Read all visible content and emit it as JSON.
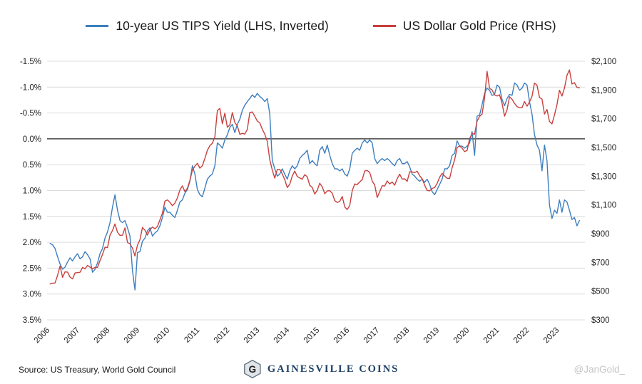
{
  "footer": {
    "source": "Source: US Treasury, World Gold Council",
    "brand": "Gainesville Coins",
    "watermark": "@JanGold_"
  },
  "colors": {
    "tips_line": "#3d7ebf",
    "gold_line": "#c8403d",
    "grid": "#dcdcdc",
    "zero_line": "#222222",
    "brand_navy": "#1e3f63"
  },
  "chart_data": {
    "type": "line",
    "x_unit": "decimal year (monthly points, Jan 2006 - Sep 2023)",
    "x_start": 2006.0,
    "x_step": 0.083333,
    "x_range": [
      2005.9,
      2023.85
    ],
    "x_ticks": [
      2006,
      2007,
      2008,
      2009,
      2010,
      2011,
      2012,
      2013,
      2014,
      2015,
      2016,
      2017,
      2018,
      2019,
      2020,
      2021,
      2022,
      2023
    ],
    "zero_line": 0,
    "grid": true,
    "legend_position": "top",
    "left_axis": {
      "min": -1.5,
      "max": 3.5,
      "inverted": true,
      "ticks": [
        {
          "v": -1.5,
          "label": "-1.5%"
        },
        {
          "v": -1.0,
          "label": "-1.0%"
        },
        {
          "v": -0.5,
          "label": "-0.5%"
        },
        {
          "v": 0.0,
          "label": "0.0%"
        },
        {
          "v": 0.5,
          "label": "0.5%"
        },
        {
          "v": 1.0,
          "label": "1.0%"
        },
        {
          "v": 1.5,
          "label": "1.5%"
        },
        {
          "v": 2.0,
          "label": "2.0%"
        },
        {
          "v": 2.5,
          "label": "2.5%"
        },
        {
          "v": 3.0,
          "label": "3.0%"
        },
        {
          "v": 3.5,
          "label": "3.5%"
        }
      ]
    },
    "right_axis": {
      "min": 300,
      "max": 2100,
      "ticks": [
        {
          "v": 2100,
          "label": "$2,100"
        },
        {
          "v": 1900,
          "label": "$1,900"
        },
        {
          "v": 1700,
          "label": "$1,700"
        },
        {
          "v": 1500,
          "label": "$1,500"
        },
        {
          "v": 1300,
          "label": "$1,300"
        },
        {
          "v": 1100,
          "label": "$1,100"
        },
        {
          "v": 900,
          "label": "$900"
        },
        {
          "v": 700,
          "label": "$700"
        },
        {
          "v": 500,
          "label": "$500"
        },
        {
          "v": 300,
          "label": "$300"
        }
      ]
    },
    "series": [
      {
        "name": "10-year US TIPS Yield (LHS, Inverted)",
        "axis": "left",
        "color": "#3d7ebf",
        "values": [
          2.02,
          2.05,
          2.12,
          2.28,
          2.42,
          2.52,
          2.48,
          2.38,
          2.3,
          2.36,
          2.28,
          2.22,
          2.32,
          2.28,
          2.18,
          2.24,
          2.32,
          2.58,
          2.52,
          2.4,
          2.22,
          2.12,
          1.92,
          1.8,
          1.62,
          1.32,
          1.08,
          1.38,
          1.58,
          1.62,
          1.58,
          1.72,
          1.88,
          2.55,
          2.92,
          2.2,
          2.18,
          1.98,
          1.92,
          1.78,
          1.72,
          1.88,
          1.82,
          1.78,
          1.68,
          1.52,
          1.32,
          1.42,
          1.42,
          1.48,
          1.52,
          1.38,
          1.22,
          1.18,
          1.05,
          0.98,
          0.82,
          0.52,
          0.68,
          0.98,
          1.08,
          1.12,
          0.95,
          0.78,
          0.72,
          0.68,
          0.52,
          0.08,
          0.12,
          0.18,
          0.02,
          -0.08,
          -0.22,
          -0.28,
          -0.12,
          -0.28,
          -0.38,
          -0.55,
          -0.65,
          -0.72,
          -0.78,
          -0.85,
          -0.8,
          -0.88,
          -0.82,
          -0.78,
          -0.72,
          -0.78,
          -0.48,
          0.42,
          0.58,
          0.72,
          0.68,
          0.58,
          0.68,
          0.78,
          0.62,
          0.52,
          0.58,
          0.52,
          0.38,
          0.32,
          0.28,
          0.22,
          0.48,
          0.42,
          0.48,
          0.52,
          0.22,
          0.15,
          0.28,
          0.12,
          0.32,
          0.48,
          0.58,
          0.58,
          0.62,
          0.58,
          0.68,
          0.72,
          0.58,
          0.28,
          0.22,
          0.18,
          0.22,
          0.08,
          0.02,
          0.08,
          0.02,
          0.08,
          0.38,
          0.48,
          0.42,
          0.38,
          0.42,
          0.38,
          0.42,
          0.48,
          0.52,
          0.42,
          0.38,
          0.48,
          0.48,
          0.44,
          0.54,
          0.68,
          0.72,
          0.78,
          0.82,
          0.78,
          0.84,
          0.78,
          0.88,
          1.02,
          1.08,
          0.98,
          0.88,
          0.78,
          0.58,
          0.58,
          0.52,
          0.32,
          0.28,
          0.04,
          0.14,
          0.14,
          0.18,
          0.14,
          0.08,
          -0.14,
          0.32,
          -0.44,
          -0.46,
          -0.66,
          -0.88,
          -0.98,
          -0.94,
          -0.84,
          -0.86,
          -1.04,
          -1.0,
          -0.76,
          -0.64,
          -0.78,
          -0.86,
          -0.84,
          -1.08,
          -1.04,
          -0.94,
          -0.98,
          -1.08,
          -1.04,
          -0.72,
          -0.48,
          -0.08,
          0.12,
          0.22,
          0.62,
          0.12,
          0.42,
          1.28,
          1.54,
          1.38,
          1.44,
          1.18,
          1.42,
          1.18,
          1.22,
          1.38,
          1.56,
          1.52,
          1.68,
          1.58
        ]
      },
      {
        "name": "US Dollar Gold Price (RHS)",
        "axis": "right",
        "color": "#c8403d",
        "values": [
          550,
          555,
          557,
          610,
          675,
          596,
          634,
          632,
          598,
          585,
          627,
          629,
          631,
          665,
          655,
          679,
          667,
          655,
          665,
          665,
          713,
          755,
          806,
          803,
          890,
          922,
          968,
          910,
          888,
          889,
          940,
          839,
          829,
          800,
          745,
          820,
          858,
          943,
          924,
          890,
          928,
          946,
          934,
          950,
          996,
          1043,
          1127,
          1135,
          1118,
          1095,
          1113,
          1149,
          1205,
          1232,
          1193,
          1216,
          1271,
          1342,
          1370,
          1390,
          1356,
          1373,
          1424,
          1480,
          1513,
          1529,
          1573,
          1757,
          1772,
          1665,
          1739,
          1641,
          1656,
          1743,
          1674,
          1650,
          1591,
          1598,
          1593,
          1626,
          1744,
          1747,
          1717,
          1684,
          1671,
          1627,
          1593,
          1541,
          1414,
          1343,
          1287,
          1347,
          1348,
          1316,
          1276,
          1221,
          1244,
          1301,
          1336,
          1298,
          1288,
          1279,
          1311,
          1296,
          1237,
          1222,
          1176,
          1201,
          1251,
          1227,
          1178,
          1198,
          1199,
          1181,
          1130,
          1117,
          1125,
          1159,
          1086,
          1068,
          1097,
          1200,
          1246,
          1242,
          1260,
          1276,
          1337,
          1340,
          1327,
          1266,
          1238,
          1152,
          1192,
          1234,
          1231,
          1267,
          1246,
          1260,
          1237,
          1283,
          1314,
          1280,
          1282,
          1264,
          1331,
          1330,
          1325,
          1335,
          1303,
          1282,
          1238,
          1201,
          1198,
          1215,
          1221,
          1250,
          1292,
          1320,
          1301,
          1286,
          1284,
          1359,
          1413,
          1499,
          1511,
          1495,
          1471,
          1479,
          1561,
          1597,
          1592,
          1683,
          1716,
          1732,
          1843,
          2030,
          1912,
          1900,
          1866,
          1858,
          1867,
          1808,
          1718,
          1762,
          1853,
          1835,
          1807,
          1784,
          1777,
          1777,
          1820,
          1787,
          1817,
          1856,
          1948,
          1934,
          1848,
          1837,
          1733,
          1765,
          1681,
          1664,
          1726,
          1798,
          1898,
          1858,
          1913,
          2002,
          2040,
          1942,
          1951,
          1918,
          1915
        ]
      }
    ]
  }
}
